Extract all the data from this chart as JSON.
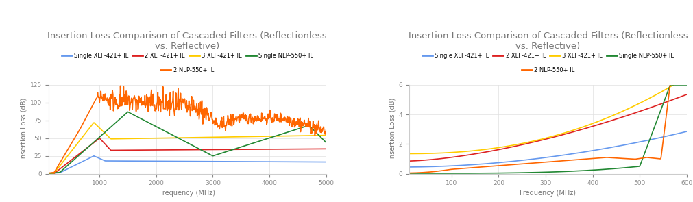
{
  "title": "Insertion Loss Comparison of Cascaded Filters (Reflectionless\nvs. Reflective)",
  "ylabel": "Insertion Loss (dB)",
  "xlabel": "Frequency (MHz)",
  "background_color": "#ffffff",
  "title_color": "#777777",
  "title_fontsize": 9.5,
  "legend_labels": [
    "Single XLF-421+ IL",
    "2 XLF-421+ IL",
    "3 XLF-421+ IL",
    "Single NLP-550+ IL",
    "2 NLP-550+ IL"
  ],
  "line_colors": [
    "#6699ee",
    "#dd2222",
    "#ffcc00",
    "#228833",
    "#ff6600"
  ],
  "chart1": {
    "xlim": [
      100,
      5000
    ],
    "ylim": [
      0,
      125
    ],
    "yticks": [
      0,
      25,
      50,
      75,
      100,
      125
    ],
    "xticks": [
      1000,
      2000,
      3000,
      4000,
      5000
    ]
  },
  "chart2": {
    "xlim": [
      10,
      600
    ],
    "ylim": [
      0,
      6
    ],
    "yticks": [
      0,
      2,
      4,
      6
    ],
    "xticks": [
      100,
      200,
      300,
      400,
      500,
      600
    ]
  }
}
